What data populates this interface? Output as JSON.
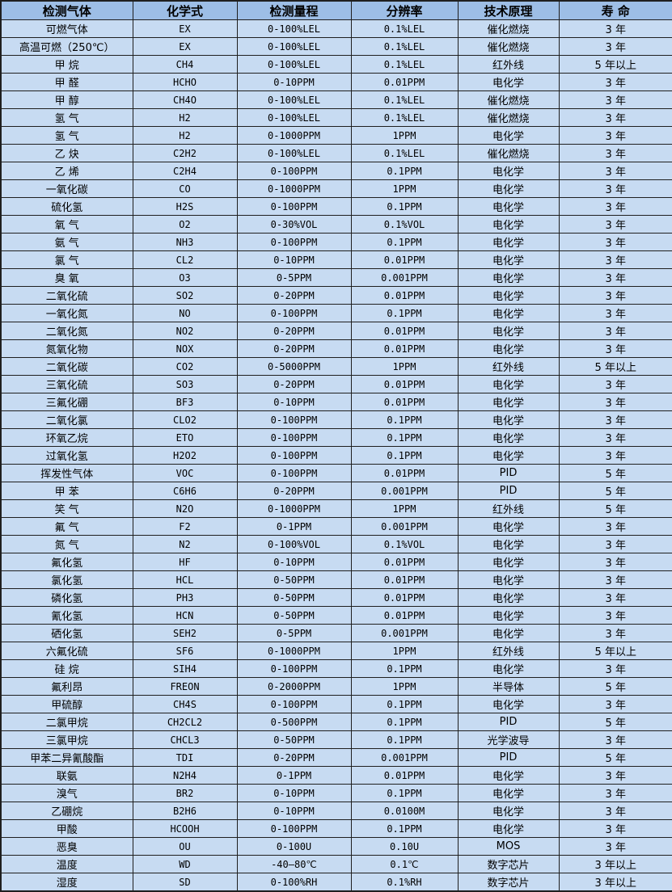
{
  "colors": {
    "header_bg": "#9dbee6",
    "row_bg": "#c7dbf2",
    "border": "#1f1f1f",
    "text": "#000000"
  },
  "table": {
    "columns": [
      {
        "key": "gas",
        "label": "检测气体"
      },
      {
        "key": "formula",
        "label": "化学式"
      },
      {
        "key": "range",
        "label": "检测量程"
      },
      {
        "key": "resolution",
        "label": "分辨率"
      },
      {
        "key": "principle",
        "label": "技术原理"
      },
      {
        "key": "lifespan",
        "label": "寿 命"
      }
    ],
    "rows": [
      [
        "可燃气体",
        "EX",
        "0-100%LEL",
        "0.1%LEL",
        "催化燃烧",
        "3 年"
      ],
      [
        "高温可燃（250℃）",
        "EX",
        "0-100%LEL",
        "0.1%LEL",
        "催化燃烧",
        "3 年"
      ],
      [
        "甲 烷",
        "CH4",
        "0-100%LEL",
        "0.1%LEL",
        "红外线",
        "5 年以上"
      ],
      [
        "甲 醛",
        "HCHO",
        "0-10PPM",
        "0.01PPM",
        "电化学",
        "3 年"
      ],
      [
        "甲 醇",
        "CH4O",
        "0-100%LEL",
        "0.1%LEL",
        "催化燃烧",
        "3 年"
      ],
      [
        "氢 气",
        "H2",
        "0-100%LEL",
        "0.1%LEL",
        "催化燃烧",
        "3 年"
      ],
      [
        "氢 气",
        "H2",
        "0-1000PPM",
        "1PPM",
        "电化学",
        "3 年"
      ],
      [
        "乙 炔",
        "C2H2",
        "0-100%LEL",
        "0.1%LEL",
        "催化燃烧",
        "3 年"
      ],
      [
        "乙 烯",
        "C2H4",
        "0-100PPM",
        "0.1PPM",
        "电化学",
        "3 年"
      ],
      [
        "一氧化碳",
        "CO",
        "0-1000PPM",
        "1PPM",
        "电化学",
        "3 年"
      ],
      [
        "硫化氢",
        "H2S",
        "0-100PPM",
        "0.1PPM",
        "电化学",
        "3 年"
      ],
      [
        "氧 气",
        "O2",
        "0-30%VOL",
        "0.1%VOL",
        "电化学",
        "3 年"
      ],
      [
        "氨 气",
        "NH3",
        "0-100PPM",
        "0.1PPM",
        "电化学",
        "3 年"
      ],
      [
        "氯 气",
        "CL2",
        "0-10PPM",
        "0.01PPM",
        "电化学",
        "3 年"
      ],
      [
        "臭 氧",
        "O3",
        "0-5PPM",
        "0.001PPM",
        "电化学",
        "3 年"
      ],
      [
        "二氧化硫",
        "SO2",
        "0-20PPM",
        "0.01PPM",
        "电化学",
        "3 年"
      ],
      [
        "一氧化氮",
        "NO",
        "0-100PPM",
        "0.1PPM",
        "电化学",
        "3 年"
      ],
      [
        "二氧化氮",
        "NO2",
        "0-20PPM",
        "0.01PPM",
        "电化学",
        "3 年"
      ],
      [
        "氮氧化物",
        "NOX",
        "0-20PPM",
        "0.01PPM",
        "电化学",
        "3 年"
      ],
      [
        "二氧化碳",
        "CO2",
        "0-5000PPM",
        "1PPM",
        "红外线",
        "5 年以上"
      ],
      [
        "三氧化硫",
        "SO3",
        "0-20PPM",
        "0.01PPM",
        "电化学",
        "3 年"
      ],
      [
        "三氟化硼",
        "BF3",
        "0-10PPM",
        "0.01PPM",
        "电化学",
        "3 年"
      ],
      [
        "二氧化氯",
        "CLO2",
        "0-100PPM",
        "0.1PPM",
        "电化学",
        "3 年"
      ],
      [
        "环氧乙烷",
        "ETO",
        "0-100PPM",
        "0.1PPM",
        "电化学",
        "3 年"
      ],
      [
        "过氧化氢",
        "H2O2",
        "0-100PPM",
        "0.1PPM",
        "电化学",
        "3 年"
      ],
      [
        "挥发性气体",
        "VOC",
        "0-100PPM",
        "0.01PPM",
        "PID",
        "5 年"
      ],
      [
        "甲 苯",
        "C6H6",
        "0-20PPM",
        "0.001PPM",
        "PID",
        "5 年"
      ],
      [
        "笑 气",
        "N2O",
        "0-1000PPM",
        "1PPM",
        "红外线",
        "5 年"
      ],
      [
        "氟 气",
        "F2",
        "0-1PPM",
        "0.001PPM",
        "电化学",
        "3 年"
      ],
      [
        "氮 气",
        "N2",
        "0-100%VOL",
        "0.1%VOL",
        "电化学",
        "3 年"
      ],
      [
        "氟化氢",
        "HF",
        "0-10PPM",
        "0.01PPM",
        "电化学",
        "3 年"
      ],
      [
        "氯化氢",
        "HCL",
        "0-50PPM",
        "0.01PPM",
        "电化学",
        "3 年"
      ],
      [
        "磷化氢",
        "PH3",
        "0-50PPM",
        "0.01PPM",
        "电化学",
        "3 年"
      ],
      [
        "氰化氢",
        "HCN",
        "0-50PPM",
        "0.01PPM",
        "电化学",
        "3 年"
      ],
      [
        "硒化氢",
        "SEH2",
        "0-5PPM",
        "0.001PPM",
        "电化学",
        "3 年"
      ],
      [
        "六氟化硫",
        "SF6",
        "0-1000PPM",
        "1PPM",
        "红外线",
        "5 年以上"
      ],
      [
        "硅 烷",
        "SIH4",
        "0-100PPM",
        "0.1PPM",
        "电化学",
        "3 年"
      ],
      [
        "氟利昂",
        "FREON",
        "0-2000PPM",
        "1PPM",
        "半导体",
        "5 年"
      ],
      [
        "甲硫醇",
        "CH4S",
        "0-100PPM",
        "0.1PPM",
        "电化学",
        "3 年"
      ],
      [
        "二氯甲烷",
        "CH2CL2",
        "0-500PPM",
        "0.1PPM",
        "PID",
        "5 年"
      ],
      [
        "三氯甲烷",
        "CHCL3",
        "0-50PPM",
        "0.1PPM",
        "光学波导",
        "3 年"
      ],
      [
        "甲苯二异氰酸酯",
        "TDI",
        "0-20PPM",
        "0.001PPM",
        "PID",
        "5 年"
      ],
      [
        "联氨",
        "N2H4",
        "0-1PPM",
        "0.01PPM",
        "电化学",
        "3 年"
      ],
      [
        "溴气",
        "BR2",
        "0-10PPM",
        "0.1PPM",
        "电化学",
        "3 年"
      ],
      [
        "乙硼烷",
        "B2H6",
        "0-10PPM",
        "0.0100M",
        "电化学",
        "3 年"
      ],
      [
        "甲酸",
        "HCOOH",
        "0-100PPM",
        "0.1PPM",
        "电化学",
        "3 年"
      ],
      [
        "恶臭",
        "OU",
        "0-100U",
        "0.10U",
        "MOS",
        "3 年"
      ],
      [
        "温度",
        "WD",
        "-40—80℃",
        "0.1℃",
        "数字芯片",
        "3 年以上"
      ],
      [
        "湿度",
        "SD",
        "0-100%RH",
        "0.1%RH",
        "数字芯片",
        "3 年以上"
      ]
    ]
  }
}
